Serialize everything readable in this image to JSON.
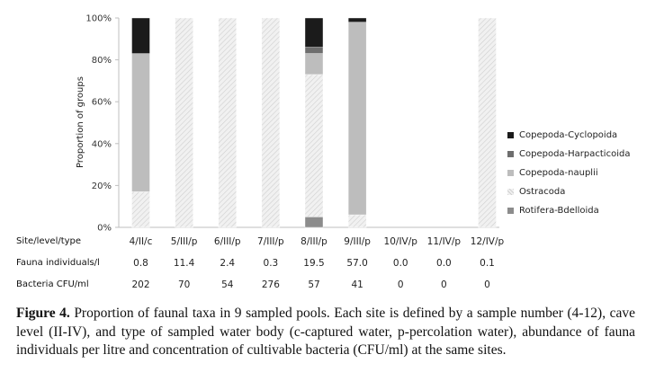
{
  "chart_data": {
    "type": "stacked-bar",
    "ylabel": "Proportion of groups",
    "ylim": [
      0,
      100
    ],
    "yticks": [
      "0%",
      "20%",
      "40%",
      "60%",
      "80%",
      "100%"
    ],
    "categories": [
      "4/II/c",
      "5/III/p",
      "6/III/p",
      "7/III/p",
      "8/III/p",
      "9/III/p",
      "10/IV/p",
      "11/IV/p",
      "12/IV/p"
    ],
    "series": [
      {
        "name": "Rotifera-Bdelloida",
        "color": "#8c8c8c",
        "values": [
          0,
          0,
          0,
          0,
          5,
          0,
          0,
          0,
          0
        ]
      },
      {
        "name": "Ostracoda",
        "color": "#ececec",
        "values": [
          17,
          100,
          100,
          100,
          68,
          6,
          0,
          0,
          100
        ]
      },
      {
        "name": "Copepoda-nauplii",
        "color": "#bdbdbd",
        "values": [
          66,
          0,
          0,
          0,
          10,
          92,
          0,
          0,
          0
        ]
      },
      {
        "name": "Copepoda-Harpacticoida",
        "color": "#6e6e6e",
        "values": [
          0,
          0,
          0,
          0,
          3,
          0,
          0,
          0,
          0
        ]
      },
      {
        "name": "Copepoda-Cyclopoida",
        "color": "#1b1b1b",
        "values": [
          17,
          0,
          0,
          0,
          14,
          2,
          0,
          0,
          0
        ]
      }
    ],
    "legend_order": [
      "Copepoda-Cyclopoida",
      "Copepoda-Harpacticoida",
      "Copepoda-nauplii",
      "Ostracoda",
      "Rotifera-Bdelloida"
    ],
    "legend_position": "right",
    "grid": false
  },
  "table": {
    "site_label": "Site/level/type",
    "fauna_label": "Fauna individuals/l",
    "fauna_values": [
      "0.8",
      "11.4",
      "2.4",
      "0.3",
      "19.5",
      "57.0",
      "0.0",
      "0.0",
      "0.1"
    ],
    "bacteria_label": "Bacteria CFU/ml",
    "bacteria_values": [
      "202",
      "70",
      "54",
      "276",
      "57",
      "41",
      "0",
      "0",
      "0"
    ]
  },
  "caption": {
    "label": "Figure 4.",
    "text": " Proportion of faunal taxa in 9 sampled pools. Each site is defined by a sample number (4-12), cave level (II-IV), and type of sampled water body (c-captured water, p-percolation water), abundance of fauna individuals per litre and concentration of cultivable bacteria (CFU/ml) at the same sites."
  }
}
